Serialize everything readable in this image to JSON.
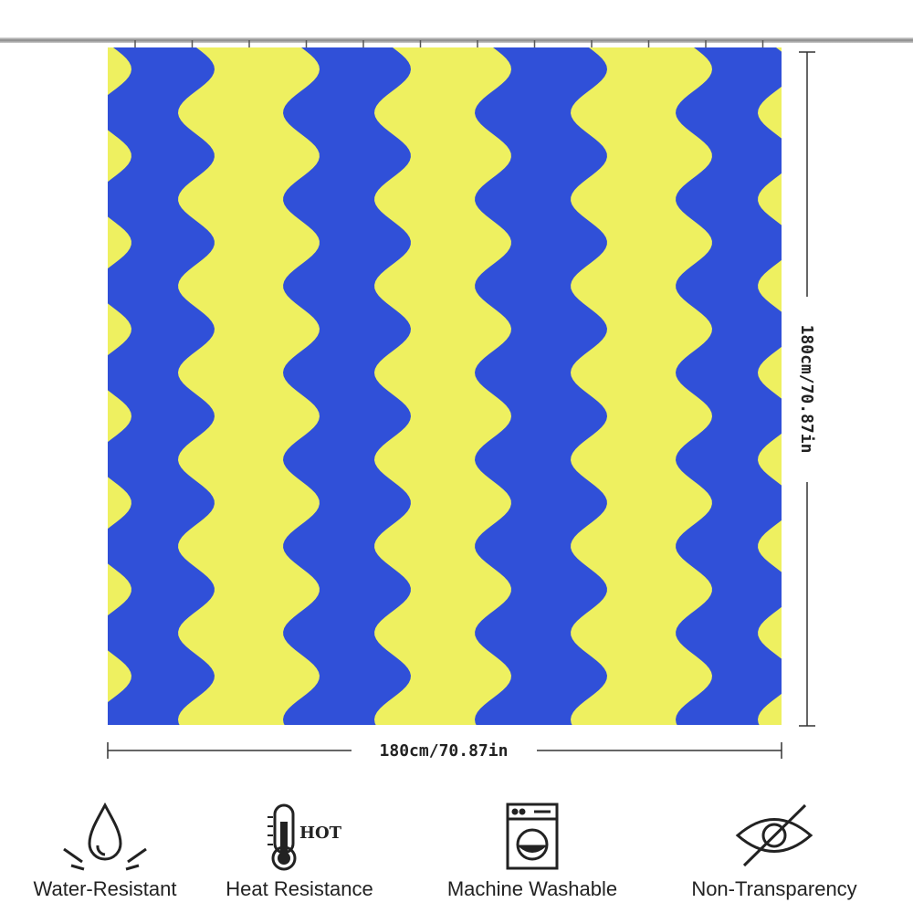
{
  "dimensions": {
    "width": "180cm/70.87in",
    "height": "180cm/70.87in"
  },
  "hot_icon_text": "HOT",
  "features": [
    {
      "label": "Water-Resistant"
    },
    {
      "label": "Heat Resistance"
    },
    {
      "label": "Machine Washable"
    },
    {
      "label": "Non-Transparency"
    }
  ]
}
